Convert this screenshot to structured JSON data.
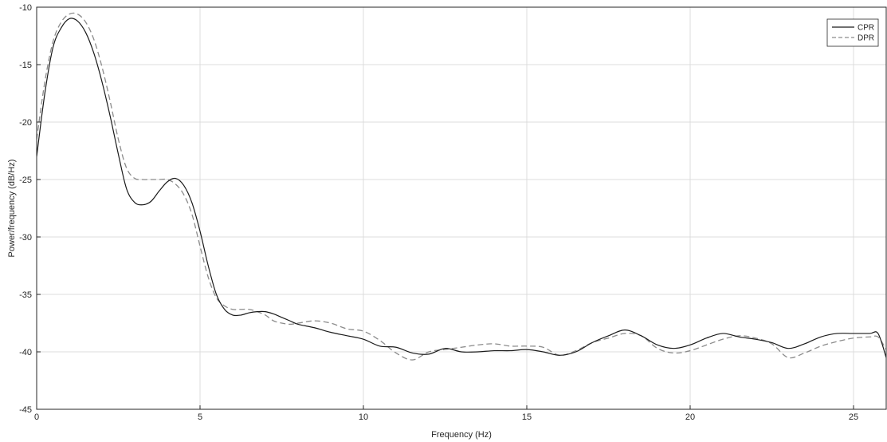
{
  "chart_data": {
    "type": "line",
    "title": "",
    "xlabel": "Frequency (Hz)",
    "ylabel": "Power/frequency (dB/Hz)",
    "xlim": [
      0,
      26
    ],
    "ylim": [
      -45,
      -10
    ],
    "xticks": [
      0,
      5,
      10,
      15,
      20,
      25
    ],
    "yticks": [
      -10,
      -15,
      -20,
      -25,
      -30,
      -35,
      -40,
      -45
    ],
    "grid": true,
    "legend_position": "top-right",
    "series": [
      {
        "name": "CPR",
        "style": "solid",
        "color": "#1a1a1a",
        "x": [
          0,
          0.25,
          0.5,
          0.75,
          1.0,
          1.25,
          1.5,
          1.75,
          2.0,
          2.25,
          2.5,
          2.75,
          3.0,
          3.25,
          3.5,
          3.75,
          4.0,
          4.25,
          4.5,
          4.75,
          5.0,
          5.25,
          5.5,
          5.75,
          6.0,
          6.25,
          6.5,
          6.75,
          7.0,
          7.25,
          7.5,
          7.75,
          8.0,
          8.5,
          9.0,
          9.5,
          10.0,
          10.5,
          11.0,
          11.5,
          12.0,
          12.5,
          13.0,
          13.5,
          14.0,
          14.5,
          15.0,
          15.5,
          16.0,
          16.5,
          17.0,
          17.5,
          18.0,
          18.5,
          19.0,
          19.5,
          20.0,
          20.5,
          21.0,
          21.5,
          22.0,
          22.5,
          23.0,
          23.5,
          24.0,
          24.5,
          25.0,
          25.5,
          25.75,
          26.0
        ],
        "values": [
          -23.0,
          -17.5,
          -13.5,
          -11.8,
          -11.0,
          -11.2,
          -12.2,
          -14.0,
          -16.5,
          -19.5,
          -22.8,
          -25.8,
          -27.0,
          -27.2,
          -26.9,
          -26.0,
          -25.2,
          -24.9,
          -25.5,
          -27.0,
          -29.5,
          -32.5,
          -35.0,
          -36.3,
          -36.8,
          -36.8,
          -36.6,
          -36.5,
          -36.5,
          -36.7,
          -37.0,
          -37.3,
          -37.6,
          -37.9,
          -38.3,
          -38.6,
          -38.9,
          -39.5,
          -39.6,
          -40.1,
          -40.2,
          -39.7,
          -40.0,
          -40.0,
          -39.9,
          -39.9,
          -39.8,
          -40.0,
          -40.3,
          -40.0,
          -39.2,
          -38.6,
          -38.1,
          -38.6,
          -39.4,
          -39.7,
          -39.4,
          -38.8,
          -38.4,
          -38.7,
          -38.9,
          -39.2,
          -39.7,
          -39.3,
          -38.7,
          -38.4,
          -38.4,
          -38.4,
          -38.4,
          -40.5
        ]
      },
      {
        "name": "DPR",
        "style": "dashed",
        "color": "#8c8c8c",
        "x": [
          0,
          0.25,
          0.5,
          0.75,
          1.0,
          1.25,
          1.5,
          1.75,
          2.0,
          2.25,
          2.5,
          2.75,
          3.0,
          3.25,
          3.5,
          3.75,
          4.0,
          4.25,
          4.5,
          4.75,
          5.0,
          5.25,
          5.5,
          5.75,
          6.0,
          6.25,
          6.5,
          6.75,
          7.0,
          7.25,
          7.5,
          7.75,
          8.0,
          8.5,
          9.0,
          9.5,
          10.0,
          10.5,
          11.0,
          11.5,
          12.0,
          12.5,
          13.0,
          13.5,
          14.0,
          14.5,
          15.0,
          15.5,
          16.0,
          16.5,
          17.0,
          17.5,
          18.0,
          18.5,
          19.0,
          19.5,
          20.0,
          20.5,
          21.0,
          21.5,
          22.0,
          22.5,
          23.0,
          23.5,
          24.0,
          24.5,
          25.0,
          25.5,
          25.75,
          26.0
        ],
        "values": [
          -21.5,
          -16.5,
          -13.0,
          -11.3,
          -10.6,
          -10.6,
          -11.3,
          -12.8,
          -15.2,
          -18.2,
          -21.5,
          -24.0,
          -24.9,
          -25.0,
          -25.0,
          -25.0,
          -25.0,
          -25.4,
          -26.3,
          -28.0,
          -30.8,
          -33.5,
          -35.3,
          -36.0,
          -36.3,
          -36.3,
          -36.3,
          -36.5,
          -36.8,
          -37.3,
          -37.5,
          -37.6,
          -37.5,
          -37.3,
          -37.5,
          -38.0,
          -38.2,
          -39.0,
          -40.1,
          -40.7,
          -40.0,
          -39.8,
          -39.6,
          -39.4,
          -39.3,
          -39.5,
          -39.5,
          -39.6,
          -40.3,
          -39.9,
          -39.2,
          -38.8,
          -38.4,
          -38.6,
          -39.7,
          -40.1,
          -39.9,
          -39.4,
          -38.9,
          -38.6,
          -38.8,
          -39.3,
          -40.5,
          -40.1,
          -39.5,
          -39.1,
          -38.8,
          -38.7,
          -38.7,
          -39.8
        ]
      }
    ]
  }
}
